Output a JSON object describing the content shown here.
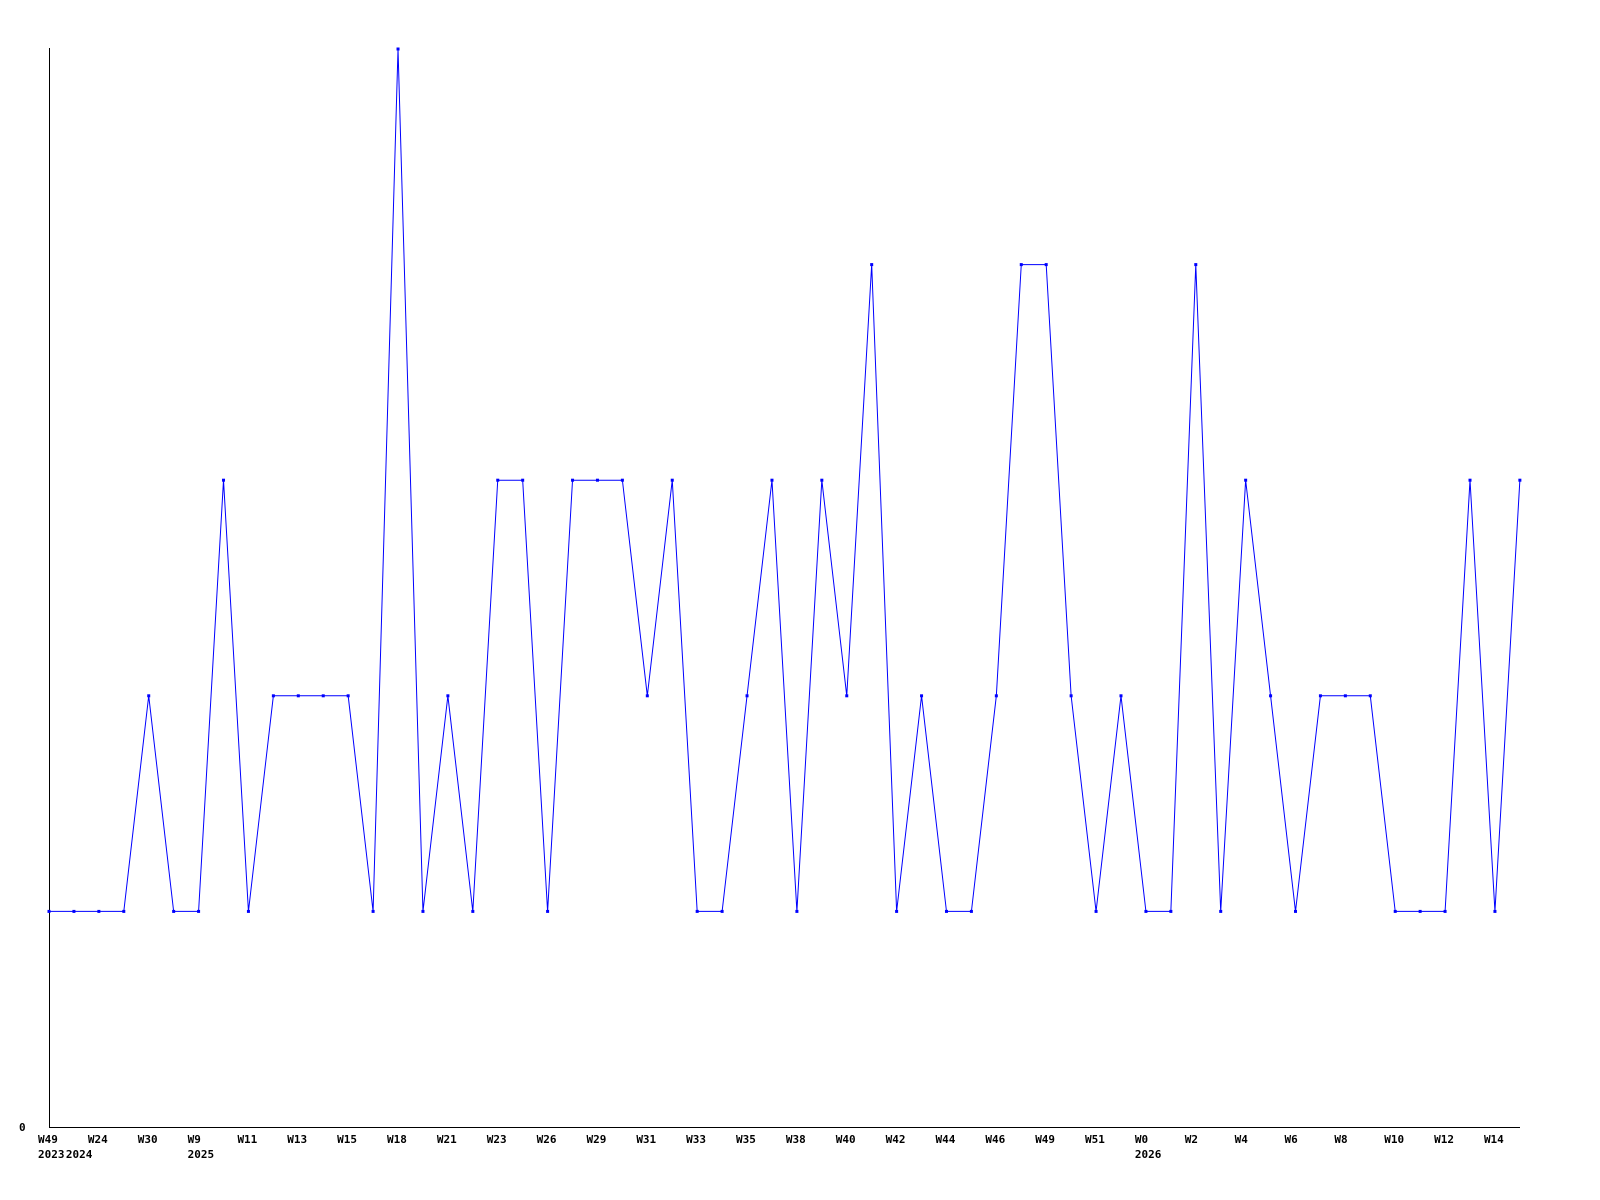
{
  "chart_data": {
    "type": "line",
    "title": "",
    "xlabel": "",
    "ylabel": "",
    "ylim": [
      0,
      5
    ],
    "y_tick_labels": [
      "0"
    ],
    "grid": false,
    "line_color": "#0000ff",
    "axis_color": "#000000",
    "x_tick_labels": [
      "W49",
      "W24",
      "W30",
      "W9",
      "W11",
      "W13",
      "W15",
      "W18",
      "W21",
      "W23",
      "W26",
      "W29",
      "W31",
      "W33",
      "W35",
      "W38",
      "W40",
      "W42",
      "W44",
      "W46",
      "W49",
      "W51",
      "W0",
      "W2",
      "W4",
      "W6",
      "W8",
      "W10",
      "W12",
      "W14"
    ],
    "year_labels": [
      {
        "label": "2023",
        "at_tick": 0
      },
      {
        "label": "2024",
        "at_tick": 0.5
      },
      {
        "label": "2025",
        "at_tick": 3
      },
      {
        "label": "2026",
        "at_tick": 22
      }
    ],
    "series": [
      {
        "values": [
          1,
          1,
          1,
          1,
          2,
          1,
          1,
          3,
          1,
          2,
          2,
          2,
          2,
          1,
          5,
          1,
          2,
          1,
          3,
          3,
          1,
          3,
          3,
          3,
          2,
          3,
          1,
          1,
          2,
          3,
          1,
          3,
          2,
          4,
          1,
          2,
          1,
          1,
          2,
          4,
          4,
          2,
          1,
          2,
          1,
          1,
          4,
          1,
          3,
          2,
          1,
          2,
          2,
          2,
          1,
          1,
          1,
          3,
          1,
          3
        ]
      }
    ]
  }
}
